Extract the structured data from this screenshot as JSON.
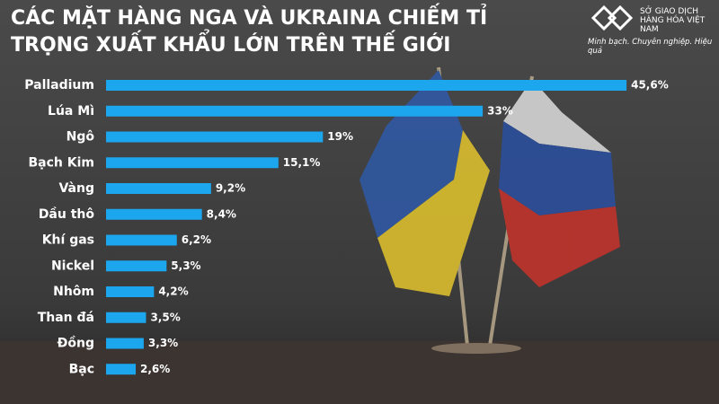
{
  "chart_data": {
    "type": "bar",
    "orientation": "horizontal",
    "title": "CÁC MẶT HÀNG NGA VÀ UKRAINA CHIẾM TỈ TRỌNG XUẤT KHẨU LỚN TRÊN THẾ GIỚI",
    "categories": [
      "Palladium",
      "Lúa Mì",
      "Ngô",
      "Bạch Kim",
      "Vàng",
      "Dầu thô",
      "Khí gas",
      "Nickel",
      "Nhôm",
      "Than đá",
      "Đồng",
      "Bạc"
    ],
    "values": [
      45.6,
      33,
      19,
      15.1,
      9.2,
      8.4,
      6.2,
      5.3,
      4.2,
      3.5,
      3.3,
      2.6
    ],
    "value_labels": [
      "45,6%",
      "33%",
      "19%",
      "15,1%",
      "9,2%",
      "8,4%",
      "6,2%",
      "5,3%",
      "4,2%",
      "3,5%",
      "3,3%",
      "2,6%"
    ],
    "color": "#1ba6ee"
  },
  "logo": {
    "name": "SỞ GIAO DỊCH HÀNG HÓA VIỆT NAM",
    "slogan": "Minh bạch. Chuyên nghiệp. Hiệu quả"
  }
}
